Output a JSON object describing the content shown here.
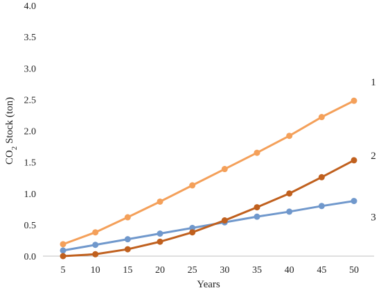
{
  "chart_data": {
    "type": "line",
    "title": "",
    "xlabel": "Years",
    "ylabel": "CO₂ Stock (ton)",
    "x": [
      5,
      10,
      15,
      20,
      25,
      30,
      35,
      40,
      45,
      50
    ],
    "x_tick_labels": [
      "5",
      "10",
      "15",
      "20",
      "25",
      "30",
      "35",
      "40",
      "45",
      "50"
    ],
    "ylim": [
      0,
      4
    ],
    "y_tick_labels": [
      "0.0",
      "0.5",
      "1.0",
      "1.5",
      "2.0",
      "2.5",
      "3.0",
      "3.5",
      "4.0"
    ],
    "y_ticks": [
      0,
      0.5,
      1,
      1.5,
      2,
      2.5,
      3,
      3.5,
      4
    ],
    "grid": false,
    "series": [
      {
        "label": "1",
        "color": "#f4a05a",
        "values": [
          0.19,
          0.38,
          0.62,
          0.87,
          1.13,
          1.39,
          1.65,
          1.92,
          2.22,
          2.48
        ]
      },
      {
        "label": "2",
        "color": "#c0601e",
        "values": [
          0.0,
          0.03,
          0.11,
          0.23,
          0.38,
          0.57,
          0.78,
          1.0,
          1.26,
          1.53
        ]
      },
      {
        "label": "3",
        "color": "#7098cc",
        "values": [
          0.09,
          0.18,
          0.27,
          0.36,
          0.45,
          0.54,
          0.63,
          0.71,
          0.8,
          0.88
        ]
      }
    ]
  }
}
